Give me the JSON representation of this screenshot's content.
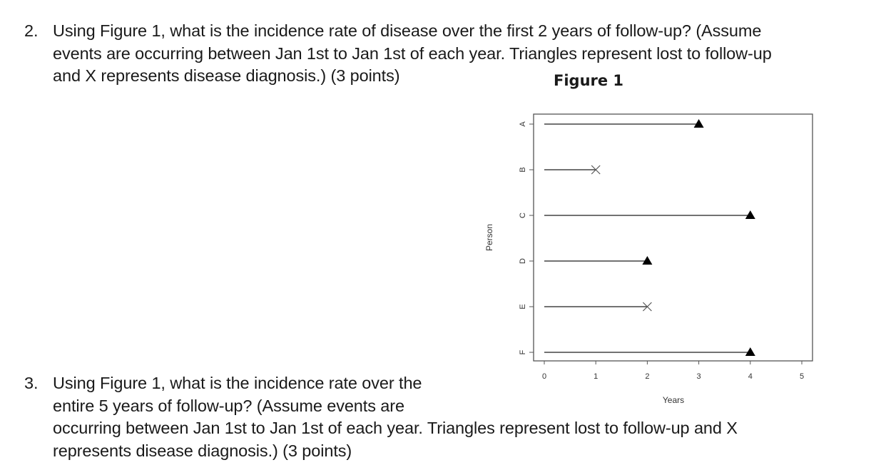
{
  "questions": [
    {
      "number": "2.",
      "lines": [
        "Using Figure 1, what is the incidence rate of disease over the first 2 years of follow-up? (Assume",
        "events are occurring between Jan 1st to Jan 1st of each year. Triangles represent lost to follow-up",
        "and X represents disease diagnosis.) (3 points)"
      ]
    },
    {
      "number": "3.",
      "lines": [
        "Using Figure 1, what is the incidence rate over the",
        "entire 5 years of follow-up? (Assume events are",
        "occurring between Jan 1st to Jan 1st of each year. Triangles represent lost to follow-up and X",
        "represents disease diagnosis.) (3 points)"
      ]
    }
  ],
  "figure": {
    "title": "Figure 1"
  },
  "chart_data": {
    "type": "scatter",
    "title": "Figure 1",
    "xlabel": "Years",
    "ylabel": "Person",
    "xlim": [
      0,
      5
    ],
    "x_ticks": [
      "0",
      "1",
      "2",
      "3",
      "4",
      "5"
    ],
    "categories": [
      "A",
      "B",
      "C",
      "D",
      "E",
      "F"
    ],
    "grid": false,
    "legend": "none",
    "series": [
      {
        "person": "A",
        "start": 0,
        "end": 3,
        "event": "lost to follow-up",
        "marker": "triangle"
      },
      {
        "person": "B",
        "start": 0,
        "end": 1,
        "event": "disease diagnosis",
        "marker": "x"
      },
      {
        "person": "C",
        "start": 0,
        "end": 4,
        "event": "lost to follow-up",
        "marker": "triangle"
      },
      {
        "person": "D",
        "start": 0,
        "end": 2,
        "event": "lost to follow-up",
        "marker": "triangle"
      },
      {
        "person": "E",
        "start": 0,
        "end": 2,
        "event": "disease diagnosis",
        "marker": "x"
      },
      {
        "person": "F",
        "start": 0,
        "end": 4,
        "event": "lost to follow-up",
        "marker": "triangle"
      }
    ]
  }
}
